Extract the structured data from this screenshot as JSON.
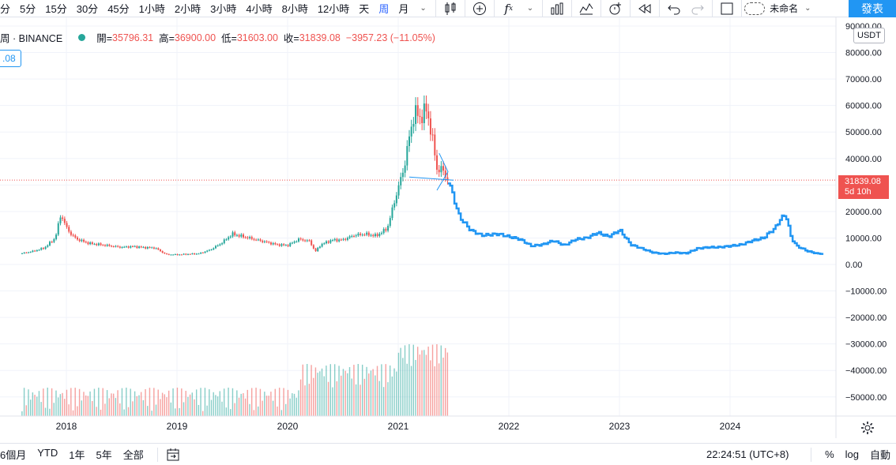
{
  "toolbar": {
    "intervals": [
      "分",
      "5分",
      "15分",
      "30分",
      "45分",
      "1小時",
      "2小時",
      "3小時",
      "4小時",
      "8小時",
      "12小時",
      "天",
      "周",
      "月"
    ],
    "active_interval": "周",
    "layout_name": "未命名",
    "publish_label": "發表"
  },
  "legend": {
    "symbol_suffix": "周 · BINANCE",
    "open_label": "開=",
    "open": "35796.31",
    "high_label": "高=",
    "high": "36900.00",
    "low_label": "低=",
    "low": "31603.00",
    "close_label": "收=",
    "close": "31839.08",
    "change": "−3957.23 (−11.05%)",
    "indicator_value": ".08"
  },
  "price_axis": {
    "currency": "USDT",
    "last_price": "31839.08",
    "countdown": "5d 10h",
    "ticks": [
      "90000.00",
      "80000.00",
      "70000.00",
      "60000.00",
      "50000.00",
      "40000.00",
      "30000.00",
      "20000.00",
      "10000.00",
      "0.00",
      "−10000.00",
      "−20000.00",
      "−30000.00",
      "−40000.00",
      "−50000.00"
    ]
  },
  "time_axis": {
    "labels": [
      "2018",
      "2019",
      "2020",
      "2021",
      "2022",
      "2023",
      "2024"
    ]
  },
  "bottom": {
    "ranges": [
      "6個月",
      "YTD",
      "1年",
      "5年",
      "全部"
    ],
    "clock": "22:24:51 (UTC+8)",
    "percent": "%",
    "log": "log",
    "auto": "自動"
  },
  "colors": {
    "up": "#26a69a",
    "down": "#ef5350",
    "forecast": "#2196f3",
    "accent": "#2962ff"
  },
  "chart_data": {
    "type": "line",
    "title": "",
    "xlabel": "",
    "ylabel": "",
    "ylim": [
      -55000,
      92000
    ],
    "x_ticks": [
      "2018",
      "2019",
      "2020",
      "2021",
      "2022",
      "2023",
      "2024"
    ],
    "series": [
      {
        "x": [
          2017.6,
          2017.7,
          2017.8,
          2017.9,
          2017.95,
          2018.0,
          2018.05,
          2018.1,
          2018.2,
          2018.3,
          2018.4,
          2018.5,
          2018.6,
          2018.7,
          2018.8,
          2018.9,
          2019.0,
          2019.1,
          2019.2,
          2019.3,
          2019.4,
          2019.5,
          2019.6,
          2019.7,
          2019.8,
          2019.9,
          2020.0,
          2020.1,
          2020.2,
          2020.25,
          2020.3,
          2020.4,
          2020.5,
          2020.6,
          2020.7,
          2020.8,
          2020.9,
          2021.0,
          2021.05,
          2021.1,
          2021.15,
          2021.2,
          2021.25,
          2021.3,
          2021.35,
          2021.4,
          2021.45
        ],
        "values": [
          4200,
          5000,
          6200,
          10000,
          19000,
          14000,
          11000,
          9500,
          8000,
          7500,
          7000,
          6500,
          6800,
          6400,
          6300,
          3800,
          3700,
          3900,
          4100,
          5500,
          8000,
          11500,
          10500,
          9500,
          8500,
          7500,
          7200,
          9500,
          8800,
          4800,
          7500,
          9200,
          9300,
          11000,
          11500,
          10800,
          13500,
          29000,
          36000,
          48000,
          58000,
          55000,
          59000,
          50000,
          36000,
          35800,
          31839
        ]
      },
      {
        "x": [
          2021.45,
          2021.55,
          2021.65,
          2021.75,
          2021.9,
          2022.0,
          2022.1,
          2022.2,
          2022.3,
          2022.4,
          2022.5,
          2022.6,
          2022.7,
          2022.8,
          2022.9,
          2023.0,
          2023.1,
          2023.2,
          2023.3,
          2023.4,
          2023.5,
          2023.6,
          2023.7,
          2023.8,
          2023.9,
          2024.0,
          2024.1,
          2024.2,
          2024.3,
          2024.35,
          2024.4,
          2024.45,
          2024.5,
          2024.55,
          2024.6,
          2024.7,
          2024.8,
          2024.85
        ],
        "values": [
          31839,
          18000,
          13000,
          11000,
          11500,
          10500,
          9500,
          7000,
          7500,
          9000,
          7200,
          9500,
          10000,
          12000,
          10500,
          13000,
          7500,
          6000,
          4500,
          4000,
          4500,
          4200,
          6000,
          6500,
          6500,
          7000,
          7500,
          9000,
          10000,
          12000,
          13500,
          17000,
          19000,
          10000,
          7000,
          5000,
          4000,
          4500
        ]
      }
    ],
    "volume_series": {
      "max_label": "scaled",
      "note_free": true
    }
  }
}
